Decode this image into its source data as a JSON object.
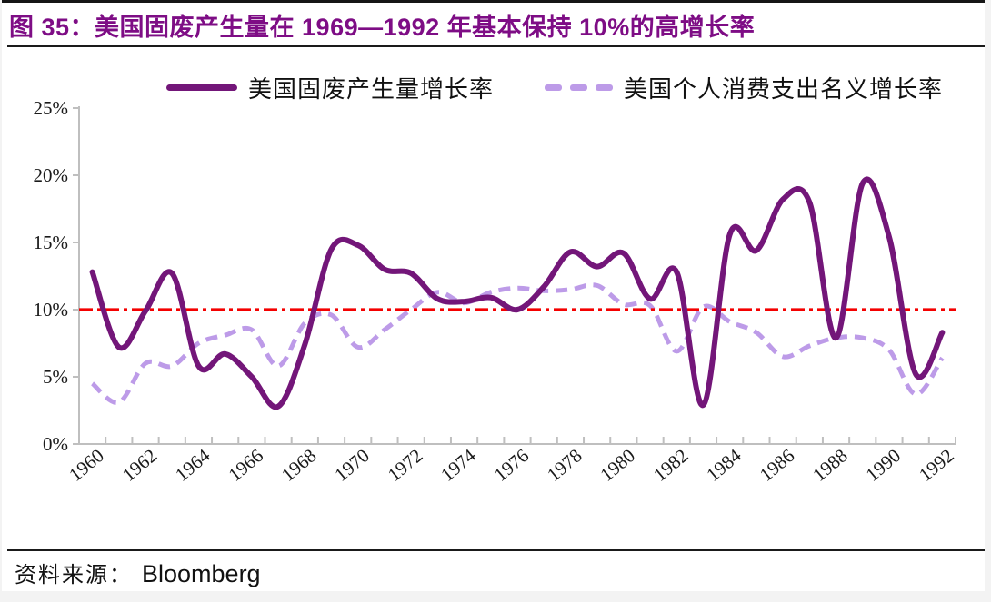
{
  "page": {
    "title": "图 35：美国固废产生量在 1969—1992 年基本保持 10%的高增长率",
    "source": {
      "label": "资料来源：",
      "value": "Bloomberg"
    }
  },
  "colors": {
    "title": "#7E0D85",
    "solid_series": "#731679",
    "dashed_series": "#BD9BE8",
    "reference_line": "#F40000",
    "axis": "#BFBFBF",
    "tick_text": "#1a1a1a"
  },
  "chart_data": {
    "type": "line",
    "x_start": 1960,
    "x_end": 1992,
    "series": [
      {
        "name": "美国固废产生量增长率",
        "style": "solid",
        "color": "#731679",
        "values": [
          12.8,
          7.2,
          9.9,
          12.7,
          5.8,
          6.7,
          5.0,
          2.8,
          7.4,
          14.5,
          14.8,
          13.0,
          12.7,
          10.8,
          10.6,
          10.9,
          10.0,
          11.7,
          14.3,
          13.2,
          14.2,
          10.8,
          12.8,
          2.9,
          15.6,
          14.4,
          18.2,
          18.0,
          7.9,
          19.4,
          15.4,
          5.2,
          8.3
        ]
      },
      {
        "name": "美国个人消费支出名义增长率",
        "style": "dashed",
        "color": "#BD9BE8",
        "values": [
          4.5,
          3.1,
          6.0,
          5.8,
          7.5,
          8.1,
          8.5,
          5.8,
          9.0,
          9.6,
          7.2,
          8.5,
          10.0,
          11.3,
          10.5,
          11.3,
          11.6,
          11.4,
          11.5,
          11.8,
          10.4,
          10.3,
          6.9,
          10.2,
          9.1,
          8.3,
          6.5,
          7.3,
          7.9,
          7.9,
          7.0,
          3.7,
          6.4
        ]
      }
    ],
    "reference_line": {
      "value": 10,
      "style": "dash-dot",
      "color": "#F40000"
    },
    "ylim": [
      0,
      25
    ],
    "yticks": [
      0,
      5,
      10,
      15,
      20,
      25
    ],
    "ytick_labels": [
      "0%",
      "5%",
      "10%",
      "15%",
      "20%",
      "25%"
    ],
    "xtick_labels": [
      "1960",
      "1962",
      "1964",
      "1966",
      "1968",
      "1970",
      "1972",
      "1974",
      "1976",
      "1978",
      "1980",
      "1982",
      "1984",
      "1986",
      "1988",
      "1990",
      "1992"
    ],
    "legend_position": "top",
    "grid": false
  }
}
